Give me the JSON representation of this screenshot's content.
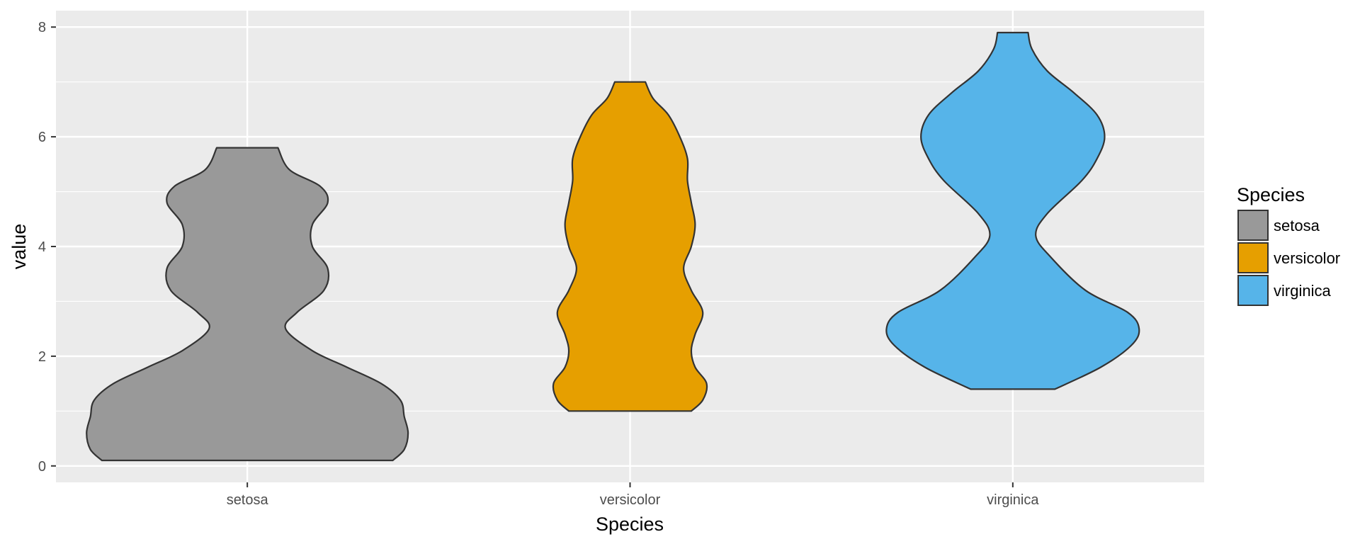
{
  "chart_data": {
    "type": "violin",
    "title": "",
    "xlabel": "Species",
    "ylabel": "value",
    "ylim": [
      -0.3,
      8.3
    ],
    "yticks": [
      0,
      2,
      4,
      6,
      8
    ],
    "grid": true,
    "legend": {
      "title": "Species",
      "placement": "right"
    },
    "categories": [
      "setosa",
      "versicolor",
      "virginica"
    ],
    "series": [
      {
        "name": "setosa",
        "color": "#999999",
        "min": 0.1,
        "max": 5.8,
        "profile": [
          [
            0.1,
            0.38
          ],
          [
            0.3,
            0.41
          ],
          [
            0.6,
            0.42
          ],
          [
            0.9,
            0.41
          ],
          [
            1.2,
            0.4
          ],
          [
            1.5,
            0.35
          ],
          [
            1.8,
            0.26
          ],
          [
            2.1,
            0.17
          ],
          [
            2.5,
            0.1
          ],
          [
            2.8,
            0.13
          ],
          [
            3.2,
            0.2
          ],
          [
            3.6,
            0.21
          ],
          [
            4.0,
            0.17
          ],
          [
            4.4,
            0.17
          ],
          [
            4.8,
            0.21
          ],
          [
            5.1,
            0.19
          ],
          [
            5.4,
            0.11
          ],
          [
            5.8,
            0.08
          ]
        ]
      },
      {
        "name": "versicolor",
        "color": "#E69F00",
        "min": 1.0,
        "max": 7.0,
        "profile": [
          [
            1.0,
            0.16
          ],
          [
            1.2,
            0.19
          ],
          [
            1.5,
            0.2
          ],
          [
            1.8,
            0.17
          ],
          [
            2.1,
            0.16
          ],
          [
            2.4,
            0.17
          ],
          [
            2.8,
            0.19
          ],
          [
            3.2,
            0.16
          ],
          [
            3.6,
            0.14
          ],
          [
            4.0,
            0.16
          ],
          [
            4.4,
            0.17
          ],
          [
            4.8,
            0.16
          ],
          [
            5.2,
            0.15
          ],
          [
            5.6,
            0.15
          ],
          [
            6.0,
            0.13
          ],
          [
            6.4,
            0.1
          ],
          [
            6.7,
            0.06
          ],
          [
            7.0,
            0.04
          ]
        ]
      },
      {
        "name": "virginica",
        "color": "#56B4E9",
        "min": 1.4,
        "max": 7.9,
        "profile": [
          [
            1.4,
            0.11
          ],
          [
            1.8,
            0.23
          ],
          [
            2.2,
            0.31
          ],
          [
            2.5,
            0.33
          ],
          [
            2.8,
            0.3
          ],
          [
            3.2,
            0.19
          ],
          [
            3.8,
            0.1
          ],
          [
            4.2,
            0.06
          ],
          [
            4.6,
            0.09
          ],
          [
            5.2,
            0.18
          ],
          [
            5.6,
            0.22
          ],
          [
            6.0,
            0.24
          ],
          [
            6.4,
            0.22
          ],
          [
            6.8,
            0.16
          ],
          [
            7.2,
            0.09
          ],
          [
            7.6,
            0.05
          ],
          [
            7.9,
            0.04
          ]
        ]
      }
    ]
  }
}
